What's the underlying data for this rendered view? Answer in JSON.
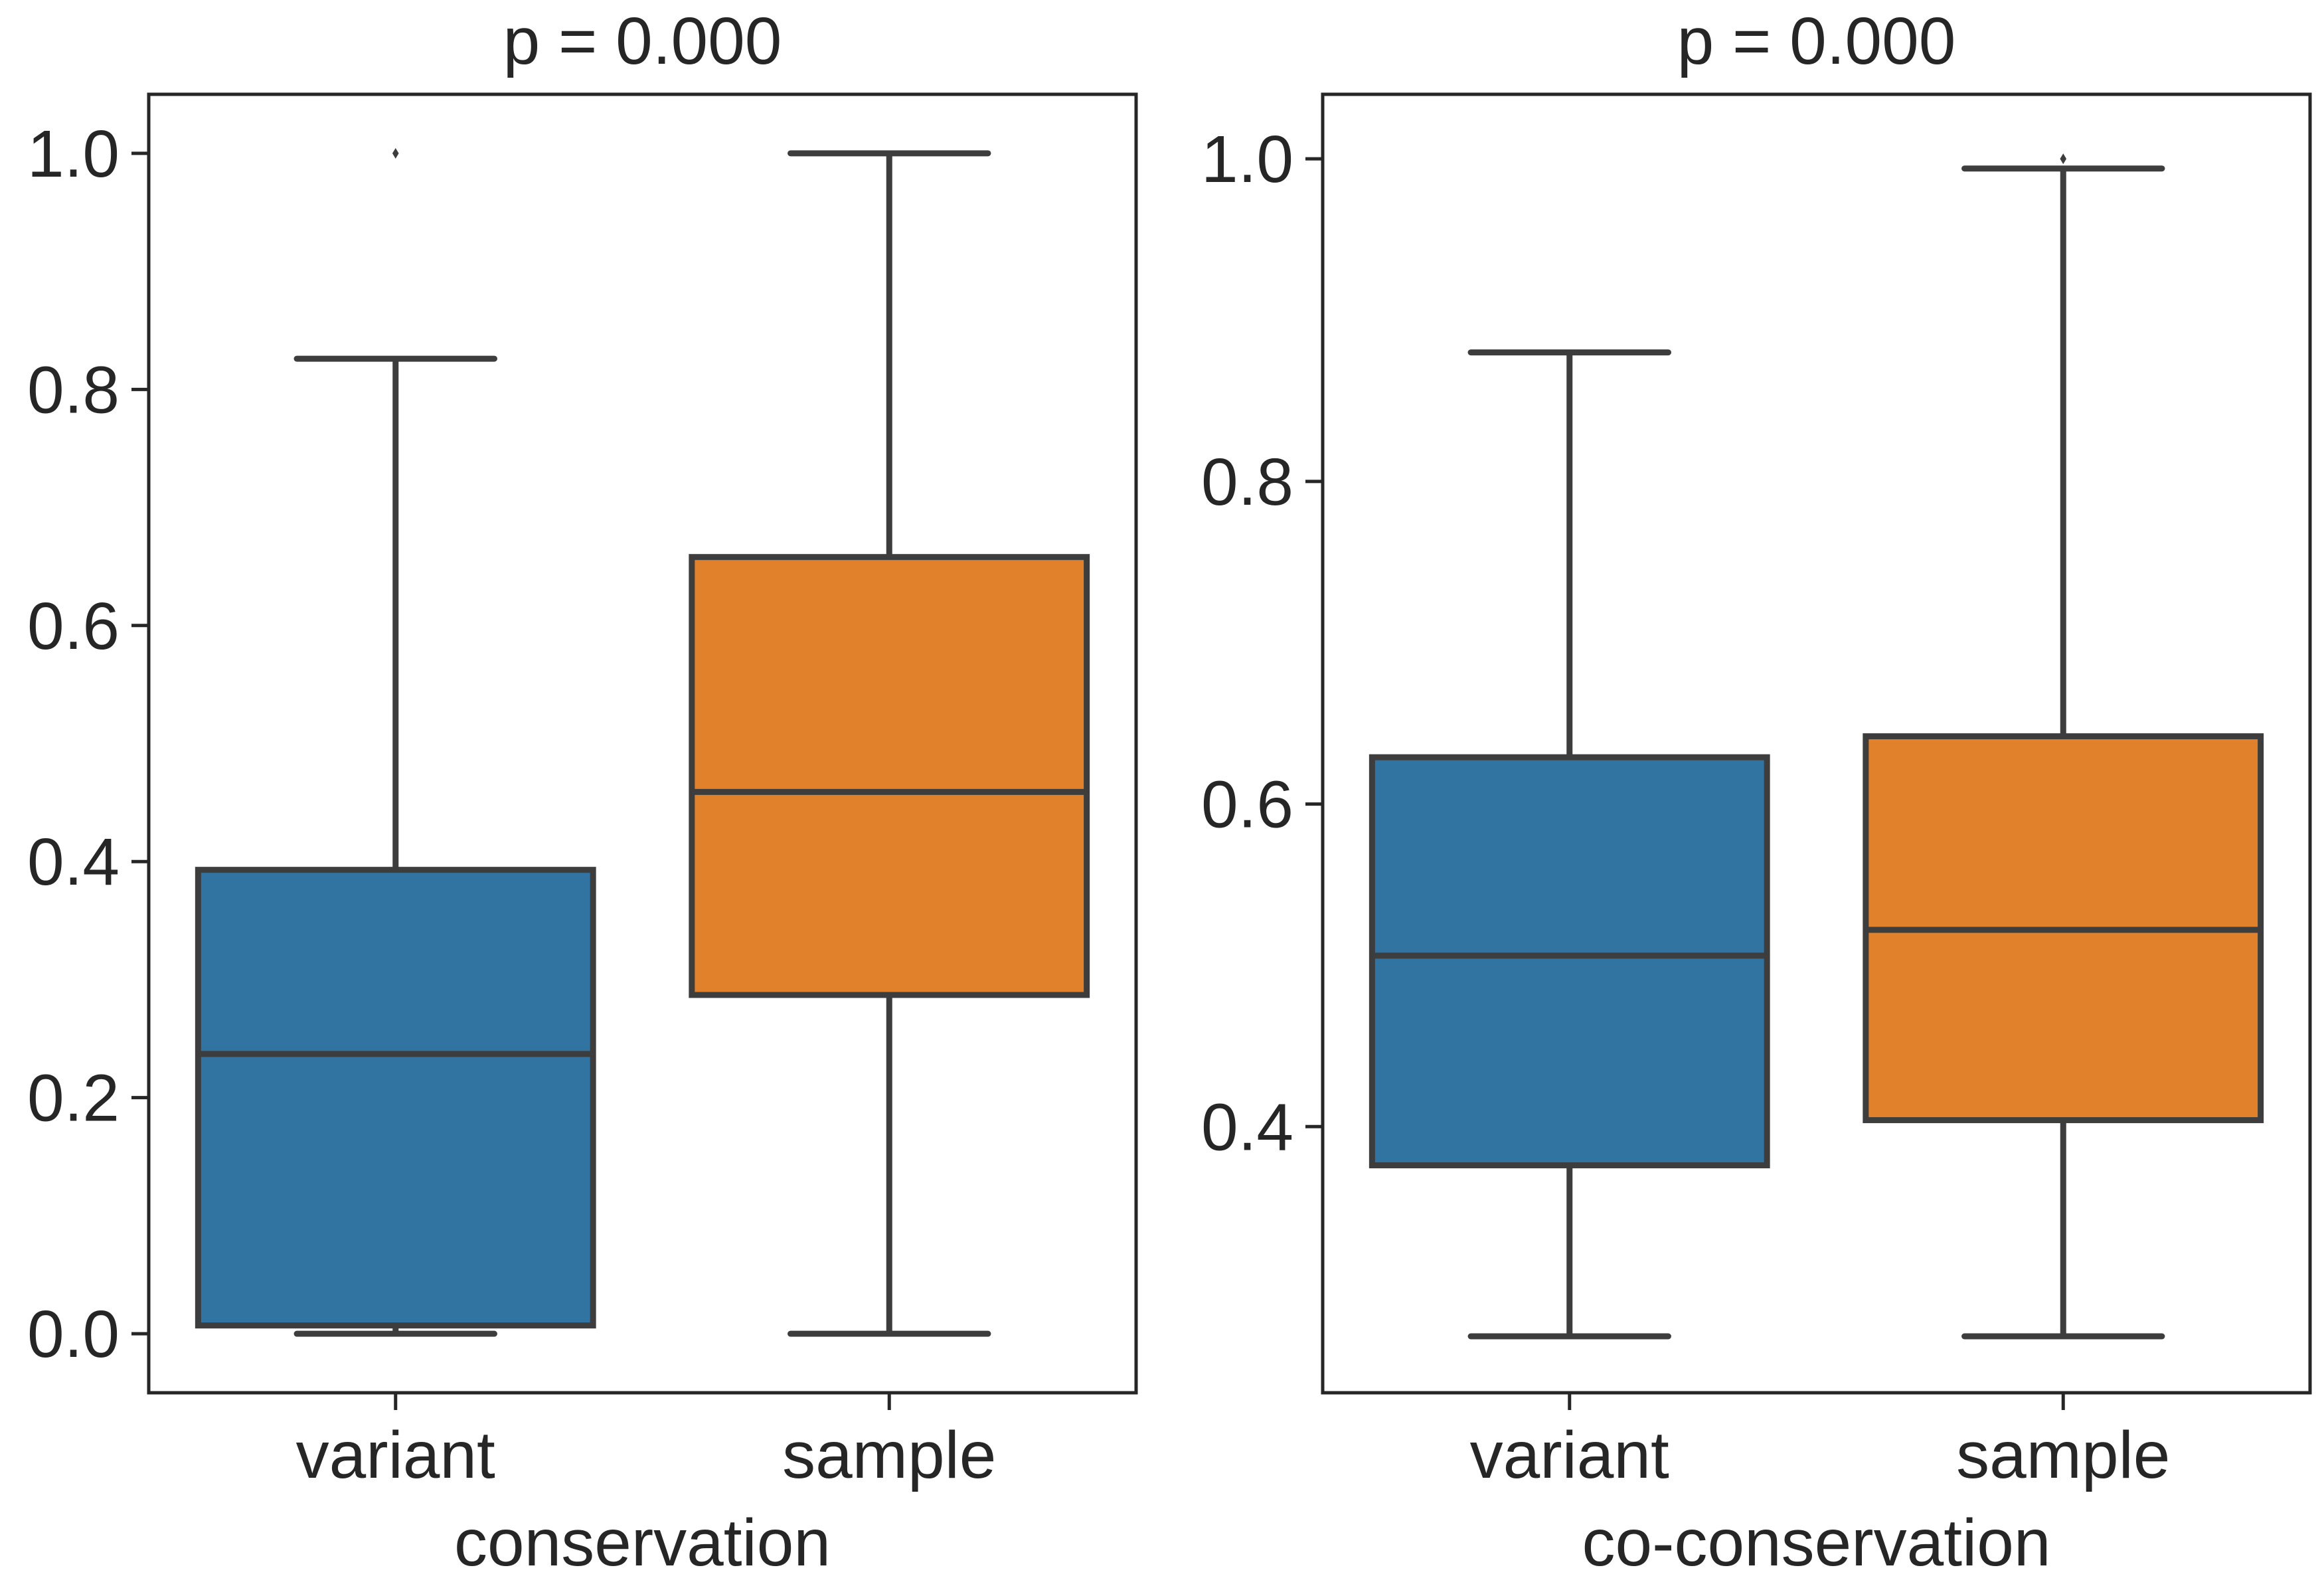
{
  "colors": {
    "variant": "#3274a1",
    "sample": "#e1812c",
    "line": "#3d3d3d",
    "frame": "#262626"
  },
  "chart_data": [
    {
      "type": "box",
      "title": "p =  0.000",
      "xlabel": "conservation",
      "ylabel": "",
      "ylim": [
        -0.05,
        1.05
      ],
      "yticks": [
        "0.0",
        "0.2",
        "0.4",
        "0.6",
        "0.8",
        "1.0"
      ],
      "categories": [
        "variant",
        "sample"
      ],
      "series": [
        {
          "name": "variant",
          "whisker_low": 0.0,
          "q1": 0.007,
          "median": 0.237,
          "q3": 0.393,
          "whisker_high": 0.826,
          "outliers": [
            1.0
          ]
        },
        {
          "name": "sample",
          "whisker_low": 0.0,
          "q1": 0.287,
          "median": 0.459,
          "q3": 0.658,
          "whisker_high": 1.0,
          "outliers": []
        }
      ]
    },
    {
      "type": "box",
      "title": "p = 0.000",
      "xlabel": "co-conservation",
      "ylabel": "",
      "ylim": [
        0.235,
        1.04
      ],
      "yticks": [
        "0.4",
        "0.6",
        "0.8",
        "1.0"
      ],
      "categories": [
        "variant",
        "sample"
      ],
      "series": [
        {
          "name": "variant",
          "whisker_low": 0.27,
          "q1": 0.376,
          "median": 0.506,
          "q3": 0.629,
          "whisker_high": 0.88,
          "outliers": []
        },
        {
          "name": "sample",
          "whisker_low": 0.27,
          "q1": 0.404,
          "median": 0.522,
          "q3": 0.642,
          "whisker_high": 0.994,
          "outliers": [
            1.0
          ]
        }
      ]
    }
  ]
}
